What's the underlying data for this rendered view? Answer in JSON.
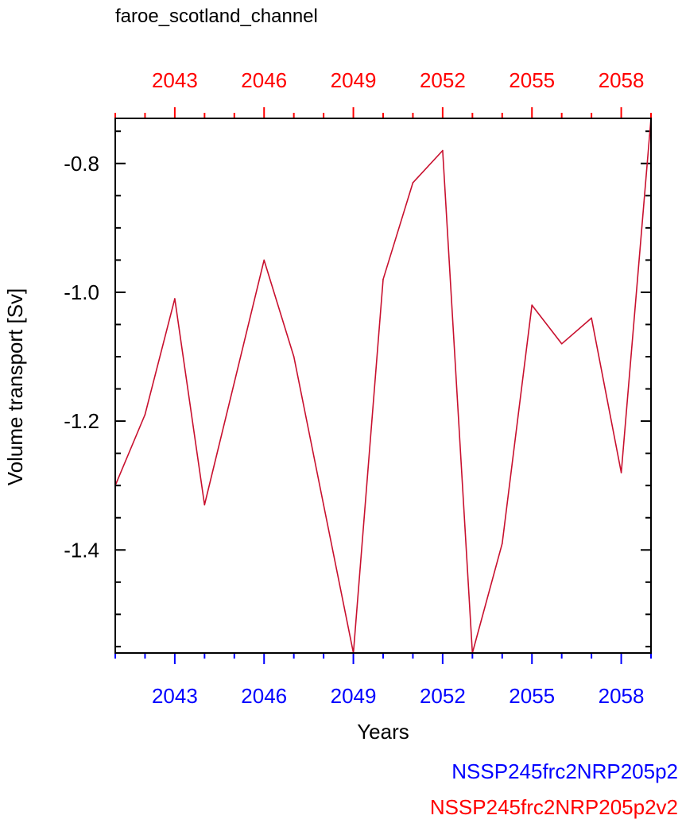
{
  "chart_data": {
    "type": "line",
    "title": "faroe_scotland_channel",
    "xlabel": "Years",
    "ylabel": "Volume transport [Sv]",
    "xlim": [
      2041,
      2059
    ],
    "ylim": [
      -1.56,
      -0.73
    ],
    "x_ticks": [
      "2043",
      "2046",
      "2049",
      "2052",
      "2055",
      "2058"
    ],
    "y_ticks": [
      "-0.8",
      "-1.0",
      "-1.2",
      "-1.4"
    ],
    "grid": false,
    "legend_position": "bottom-right",
    "series": [
      {
        "name": "NSSP245frc2NRP205p2v2",
        "color": "#c8102e",
        "x": [
          2041,
          2042,
          2043,
          2044,
          2045,
          2046,
          2047,
          2048,
          2049,
          2050,
          2051,
          2052,
          2053,
          2054,
          2055,
          2056,
          2057,
          2058,
          2059
        ],
        "values": [
          -1.3,
          -1.19,
          -1.01,
          -1.33,
          -1.14,
          -0.95,
          -1.1,
          -1.33,
          -1.56,
          -0.98,
          -0.83,
          -0.78,
          -1.56,
          -1.39,
          -1.02,
          -1.08,
          -1.04,
          -1.28,
          -0.73
        ]
      }
    ],
    "legend": [
      {
        "label": "NSSP245frc2NRP205p2",
        "color": "#0000ff"
      },
      {
        "label": "NSSP245frc2NRP205p2v2",
        "color": "#ff0000"
      }
    ],
    "bottom_axis_color": "#0000ff",
    "top_axis_color": "#ff0000"
  }
}
